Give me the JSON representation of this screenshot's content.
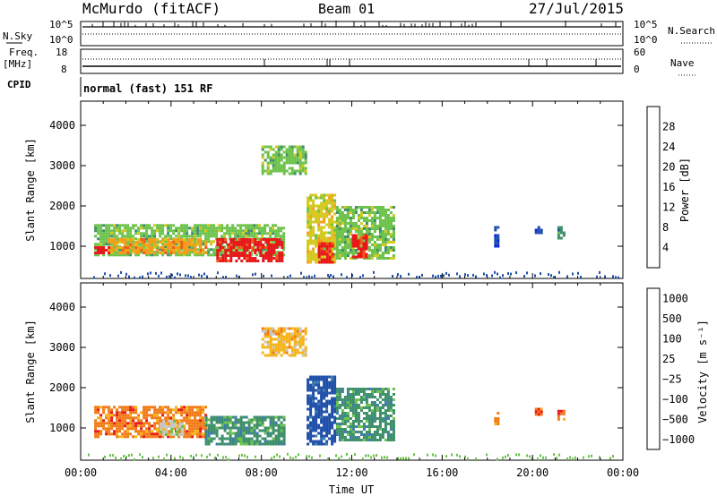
{
  "header": {
    "station": "McMurdo (fitACF)",
    "beam": "Beam 01",
    "date": "27/Jul/2015"
  },
  "noise_panel": {
    "left_label": "N.Sky",
    "right_label": "N.Search",
    "left_ticks": [
      "10^5",
      "10^0"
    ],
    "right_ticks": [
      "10^5",
      "10^0"
    ]
  },
  "freq_panel": {
    "left_label_1": "Freq.",
    "left_label_2": "[MHz]",
    "right_label": "Nave",
    "left_ticks": [
      "18",
      "8"
    ],
    "right_ticks": [
      "60",
      "0"
    ]
  },
  "cpid": {
    "label": "CPID",
    "value": "normal (fast) 151 RF"
  },
  "chart_data": [
    {
      "type": "heatmap",
      "name": "power",
      "ylabel": "Slant Range [km]",
      "yticks": [
        "1000",
        "2000",
        "3000",
        "4000"
      ],
      "ylim": [
        200,
        4600
      ],
      "x_ticks": [
        "00:00",
        "04:00",
        "08:00",
        "12:00",
        "16:00",
        "20:00",
        "00:00"
      ],
      "colorbar_label": "Power [dB]",
      "colorbar_ticks": [
        "4",
        "8",
        "12",
        "16",
        "20",
        "24",
        "28"
      ],
      "colors": [
        "#0b21e6",
        "#1f4fa8",
        "#3d8f6a",
        "#6cc24a",
        "#d4c81e",
        "#f59c19",
        "#f25a16",
        "#e8161a"
      ],
      "regions": [
        {
          "t0": 0.6,
          "t1": 9.0,
          "r0": 750,
          "r1": 1550,
          "level": 3
        },
        {
          "t0": 6.0,
          "t1": 8.9,
          "r0": 600,
          "r1": 1200,
          "level": 7
        },
        {
          "t0": 1.2,
          "t1": 5.5,
          "r0": 800,
          "r1": 1200,
          "level": 5
        },
        {
          "t0": 0.6,
          "t1": 1.3,
          "r0": 800,
          "r1": 1000,
          "level": 7
        },
        {
          "t0": 10.0,
          "t1": 11.3,
          "r0": 600,
          "r1": 2300,
          "level": 4
        },
        {
          "t0": 11.3,
          "t1": 13.8,
          "r0": 700,
          "r1": 2000,
          "level": 3
        },
        {
          "t0": 12.0,
          "t1": 12.7,
          "r0": 700,
          "r1": 1300,
          "level": 7
        },
        {
          "t0": 10.5,
          "t1": 11.1,
          "r0": 600,
          "r1": 1100,
          "level": 7
        },
        {
          "t0": 8.0,
          "t1": 10.0,
          "r0": 2800,
          "r1": 3500,
          "level": 3
        },
        {
          "t0": 18.3,
          "t1": 18.5,
          "r0": 1000,
          "r1": 1500,
          "level": 1
        },
        {
          "t0": 20.1,
          "t1": 20.4,
          "r0": 1300,
          "r1": 1500,
          "level": 1
        },
        {
          "t0": 21.1,
          "t1": 21.4,
          "r0": 1200,
          "r1": 1500,
          "level": 2
        }
      ]
    },
    {
      "type": "heatmap",
      "name": "velocity",
      "ylabel": "Slant Range [km]",
      "yticks": [
        "1000",
        "2000",
        "3000",
        "4000"
      ],
      "ylim": [
        200,
        4600
      ],
      "x_ticks": [
        "00:00",
        "04:00",
        "08:00",
        "12:00",
        "16:00",
        "20:00",
        "00:00"
      ],
      "xlabel": "Time UT",
      "colorbar_label": "Velocity [m s⁻¹]",
      "colorbar_ticks": [
        "1000",
        "500",
        "100",
        "25",
        "−25",
        "−100",
        "−500",
        "−1000"
      ],
      "colors": [
        "#1f4fa8",
        "#3d7ab0",
        "#3d8f6a",
        "#6cc24a",
        "#c8c8c8",
        "#f5b418",
        "#f27a16",
        "#e8161a"
      ],
      "regions": [
        {
          "t0": 0.6,
          "t1": 5.5,
          "r0": 750,
          "r1": 1550,
          "level": 6
        },
        {
          "t0": 5.5,
          "t1": 9.0,
          "r0": 600,
          "r1": 1300,
          "level": 2
        },
        {
          "t0": 3.5,
          "t1": 4.5,
          "r0": 800,
          "r1": 1200,
          "level": 4
        },
        {
          "t0": 10.0,
          "t1": 11.3,
          "r0": 600,
          "r1": 2300,
          "level": 0
        },
        {
          "t0": 11.3,
          "t1": 13.8,
          "r0": 700,
          "r1": 2000,
          "level": 2
        },
        {
          "t0": 8.0,
          "t1": 10.0,
          "r0": 2800,
          "r1": 3500,
          "level": 5
        },
        {
          "t0": 18.3,
          "t1": 18.5,
          "r0": 1100,
          "r1": 1400,
          "level": 6
        },
        {
          "t0": 20.1,
          "t1": 20.4,
          "r0": 1300,
          "r1": 1500,
          "level": 6
        },
        {
          "t0": 21.1,
          "t1": 21.4,
          "r0": 1200,
          "r1": 1450,
          "level": 6
        }
      ]
    }
  ]
}
